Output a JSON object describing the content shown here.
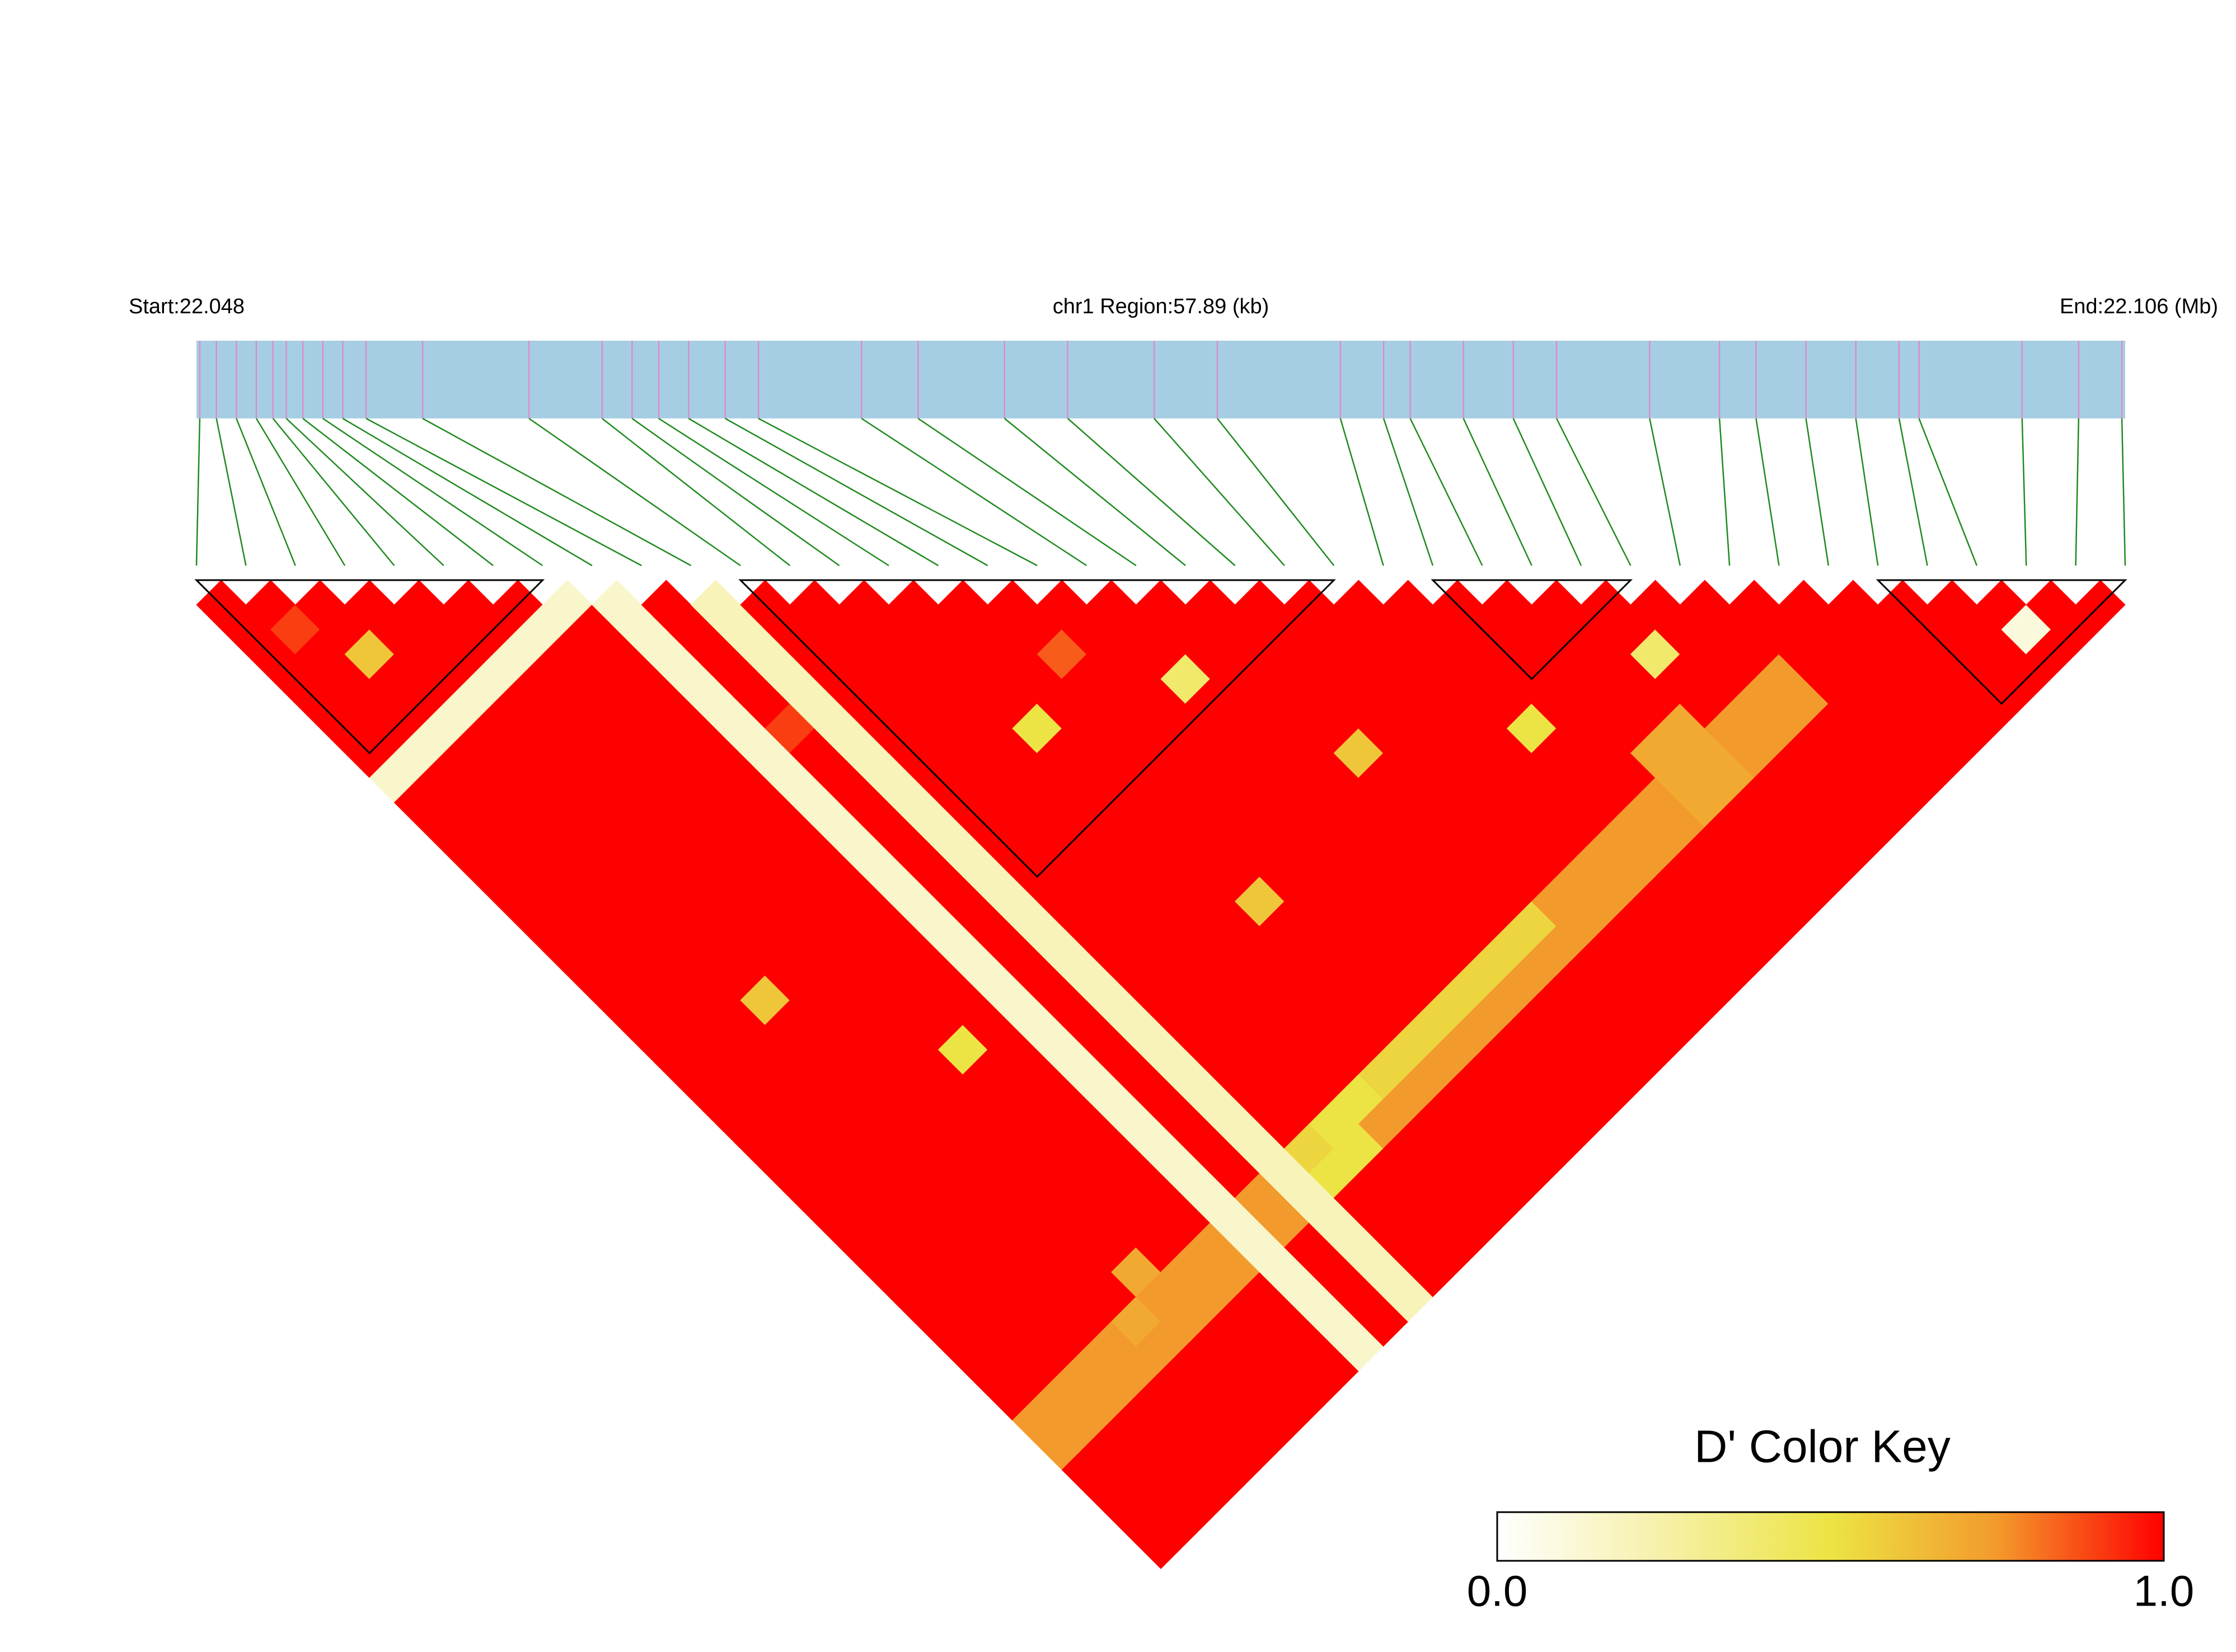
{
  "chart_data": {
    "type": "ld_heatmap",
    "start_label": "Start:22.048",
    "title": "chr1 Region:57.89 (kb)",
    "end_label": "End:22.106 (Mb)",
    "xlim": [
      22.048,
      22.106
    ],
    "positions": [
      22.0481,
      22.0486,
      22.0492,
      22.0498,
      22.0503,
      22.0507,
      22.0512,
      22.0518,
      22.0524,
      22.0531,
      22.0548,
      22.058,
      22.0602,
      22.0611,
      22.0619,
      22.0628,
      22.0639,
      22.0649,
      22.068,
      22.0697,
      22.0723,
      22.0742,
      22.0768,
      22.0787,
      22.0824,
      22.0837,
      22.0845,
      22.0861,
      22.0876,
      22.0889,
      22.0917,
      22.0938,
      22.0949,
      22.0964,
      22.0979,
      22.0992,
      22.0998,
      22.1029,
      22.1046,
      22.1059
    ],
    "values": [
      [
        1,
        1,
        1,
        1,
        1,
        1,
        1,
        0.15,
        1,
        1,
        1,
        1,
        1,
        1,
        1,
        1,
        1,
        1,
        1,
        1,
        1,
        1,
        1,
        1,
        1,
        1,
        1,
        1,
        1,
        1,
        1,
        1,
        1,
        0.75,
        0.75,
        1,
        1,
        1,
        1
      ],
      [
        1,
        0.9,
        1,
        1,
        1,
        1,
        0.15,
        1,
        1,
        1,
        1,
        1,
        1,
        1,
        1,
        1,
        1,
        1,
        1,
        1,
        1,
        1,
        1,
        1,
        1,
        1,
        1,
        1,
        1,
        1,
        1,
        1,
        0.75,
        0.75,
        1,
        1,
        1,
        1
      ],
      [
        1,
        1,
        0.6,
        1,
        1,
        0.15,
        1,
        1,
        1,
        1,
        1,
        1,
        1,
        1,
        1,
        1,
        1,
        1,
        1,
        1,
        1,
        1,
        1,
        1,
        1,
        1,
        1,
        1,
        1,
        1,
        1,
        0.75,
        0.75,
        1,
        1,
        1,
        1
      ],
      [
        1,
        1,
        1,
        1,
        0.15,
        1,
        1,
        1,
        1,
        1,
        1,
        1,
        1,
        1,
        1,
        1,
        0.6,
        1,
        1,
        1,
        1,
        1,
        1,
        1,
        1,
        1,
        1,
        1,
        1,
        1,
        0.75,
        0.75,
        1,
        1,
        1,
        1
      ],
      [
        1,
        1,
        1,
        0.15,
        1,
        1,
        1,
        1,
        1,
        1,
        1,
        1,
        1,
        1,
        1,
        1,
        1,
        1,
        1,
        1,
        1,
        1,
        1,
        1,
        1,
        1,
        1,
        1,
        1,
        0.7,
        0.75,
        1,
        1,
        1,
        1
      ],
      [
        1,
        1,
        0.15,
        1,
        1,
        1,
        1,
        1,
        1,
        1,
        1,
        1,
        1,
        1,
        1,
        1,
        1,
        1,
        1,
        1,
        1,
        1,
        1,
        1,
        1,
        1,
        1,
        0.7,
        0.75,
        0.75,
        1,
        1,
        1,
        1
      ],
      [
        1,
        0.15,
        1,
        1,
        1,
        1,
        1,
        1,
        1,
        1,
        1,
        1,
        1,
        1,
        1,
        1,
        1,
        1,
        0.5,
        1,
        1,
        1,
        1,
        1,
        1,
        1,
        1,
        0.75,
        0.75,
        1,
        1,
        1,
        1
      ],
      [
        0.15,
        1,
        1,
        1,
        1,
        1,
        1,
        1,
        1,
        1,
        1,
        1,
        1,
        1,
        1,
        1,
        1,
        1,
        1,
        1,
        1,
        1,
        1,
        1,
        1,
        1,
        0.75,
        0.75,
        1,
        1,
        1,
        1
      ],
      [
        0.15,
        0.15,
        0.15,
        0.15,
        0.15,
        0.15,
        0.15,
        0.15,
        0.15,
        0.15,
        0.15,
        0.15,
        0.15,
        0.15,
        0.15,
        0.15,
        0.15,
        0.15,
        0.15,
        0.15,
        0.15,
        0.15,
        0.15,
        0.15,
        0.15,
        0.15,
        0.15,
        0.15,
        0.15,
        0.15,
        0.15
      ],
      [
        1,
        1,
        1,
        1,
        1,
        0.9,
        1,
        1,
        1,
        1,
        1,
        1,
        1,
        1,
        1,
        1,
        1,
        1,
        1,
        1,
        1,
        1,
        1,
        1,
        0.75,
        0.75,
        1,
        1,
        1,
        1
      ],
      [
        0.2,
        0.2,
        0.2,
        0.2,
        0.2,
        0.2,
        0.2,
        0.2,
        0.2,
        0.2,
        0.2,
        0.2,
        0.2,
        0.2,
        0.2,
        0.2,
        0.2,
        0.2,
        0.2,
        0.2,
        0.2,
        0.2,
        0.2,
        0.2,
        0.2,
        0.2,
        0.2,
        0.2,
        0.2
      ],
      [
        1,
        1,
        1,
        1,
        1,
        1,
        1,
        1,
        1,
        1,
        1,
        1,
        1,
        1,
        1,
        1,
        1,
        1,
        1,
        1,
        1,
        1,
        0.55,
        0.5,
        1,
        1,
        1,
        1
      ],
      [
        1,
        1,
        1,
        1,
        1,
        1,
        1,
        1,
        1,
        1,
        1,
        1,
        1,
        1,
        1,
        1,
        1,
        1,
        1,
        1,
        1,
        0.5,
        0.5,
        1,
        1,
        1,
        1
      ],
      [
        1,
        1,
        1,
        1,
        1,
        1,
        1,
        1,
        1,
        1,
        1,
        1,
        1,
        1,
        1,
        1,
        1,
        1,
        1,
        1,
        0.5,
        0.75,
        1,
        1,
        1,
        1
      ],
      [
        1,
        1,
        1,
        1,
        1,
        0.5,
        1,
        1,
        1,
        1,
        1,
        1,
        1,
        1,
        1,
        1,
        1,
        1,
        1,
        0.55,
        0.75,
        1,
        1,
        1,
        1
      ],
      [
        1,
        1,
        1,
        1,
        1,
        1,
        1,
        1,
        1,
        1,
        1,
        1,
        0.6,
        1,
        1,
        1,
        1,
        1,
        0.55,
        0.75,
        1,
        1,
        1,
        1
      ],
      [
        1,
        1,
        0.85,
        1,
        1,
        1,
        1,
        1,
        1,
        1,
        1,
        1,
        1,
        1,
        1,
        1,
        1,
        0.55,
        0.75,
        1,
        1,
        1,
        1
      ],
      [
        1,
        1,
        1,
        1,
        1,
        1,
        1,
        1,
        1,
        1,
        1,
        1,
        1,
        1,
        1,
        1,
        0.55,
        0.75,
        1,
        1,
        1,
        1
      ],
      [
        1,
        1,
        1,
        0.4,
        1,
        1,
        1,
        1,
        1,
        1,
        1,
        1,
        1,
        1,
        1,
        0.55,
        0.75,
        1,
        1,
        1,
        1
      ],
      [
        1,
        1,
        1,
        1,
        1,
        1,
        1,
        1,
        1,
        1,
        1,
        1,
        1,
        1,
        0.55,
        0.75,
        1,
        1,
        1,
        1
      ],
      [
        1,
        1,
        1,
        1,
        1,
        1,
        0.6,
        1,
        1,
        1,
        1,
        1,
        1,
        0.55,
        0.75,
        1,
        1,
        1,
        1
      ],
      [
        1,
        1,
        1,
        1,
        1,
        1,
        1,
        1,
        1,
        1,
        1,
        1,
        0.75,
        0.75,
        1,
        1,
        1,
        1
      ],
      [
        1,
        1,
        1,
        1,
        1,
        1,
        1,
        1,
        1,
        1,
        1,
        0.75,
        0.75,
        1,
        1,
        1,
        1
      ],
      [
        1,
        1,
        1,
        1,
        1,
        1,
        1,
        1,
        1,
        1,
        0.75,
        0.75,
        1,
        1,
        1,
        1
      ],
      [
        1,
        1,
        1,
        1,
        1,
        0.5,
        1,
        1,
        1,
        0.75,
        0.75,
        1,
        1,
        1,
        1
      ],
      [
        1,
        1,
        1,
        1,
        1,
        1,
        1,
        1,
        0.75,
        0.75,
        1,
        1,
        1,
        1
      ],
      [
        1,
        1,
        1,
        1,
        1,
        1,
        0.7,
        0.7,
        0.7,
        1,
        1,
        1,
        1
      ],
      [
        1,
        1,
        1,
        1,
        1,
        0.7,
        0.7,
        0.7,
        1,
        1,
        1,
        1
      ],
      [
        1,
        1,
        0.4,
        1,
        1,
        0.75,
        0.75,
        1,
        1,
        1,
        1
      ],
      [
        1,
        1,
        1,
        1,
        0.75,
        0.75,
        1,
        1,
        1,
        1
      ],
      [
        1,
        1,
        1,
        0.75,
        0.75,
        1,
        1,
        1,
        1
      ],
      [
        1,
        1,
        1,
        1,
        1,
        1,
        1,
        1
      ],
      [
        1,
        1,
        1,
        1,
        1,
        1,
        1
      ],
      [
        1,
        1,
        1,
        1,
        1,
        1
      ],
      [
        1,
        1,
        1,
        1,
        1
      ],
      [
        1,
        1,
        1,
        1
      ],
      [
        1,
        0.1,
        1
      ],
      [
        1,
        1
      ],
      [
        1
      ]
    ],
    "blocks": [
      [
        0,
        7
      ],
      [
        11,
        23
      ],
      [
        25,
        29
      ],
      [
        34,
        39
      ]
    ],
    "bar_color": "#a6cee3",
    "snp_line_color": "#d98ccf",
    "link_color": "#1f8a1f",
    "colorbar": {
      "title": "D' Color Key",
      "lim": [
        0,
        1
      ],
      "ticks": [
        {
          "value": 0,
          "label": "0.0"
        },
        {
          "value": 1,
          "label": "1.0"
        }
      ],
      "colors": [
        "#ffffff",
        "#f6f0a8",
        "#ece444",
        "#f39a2c",
        "#ff0000"
      ]
    }
  }
}
